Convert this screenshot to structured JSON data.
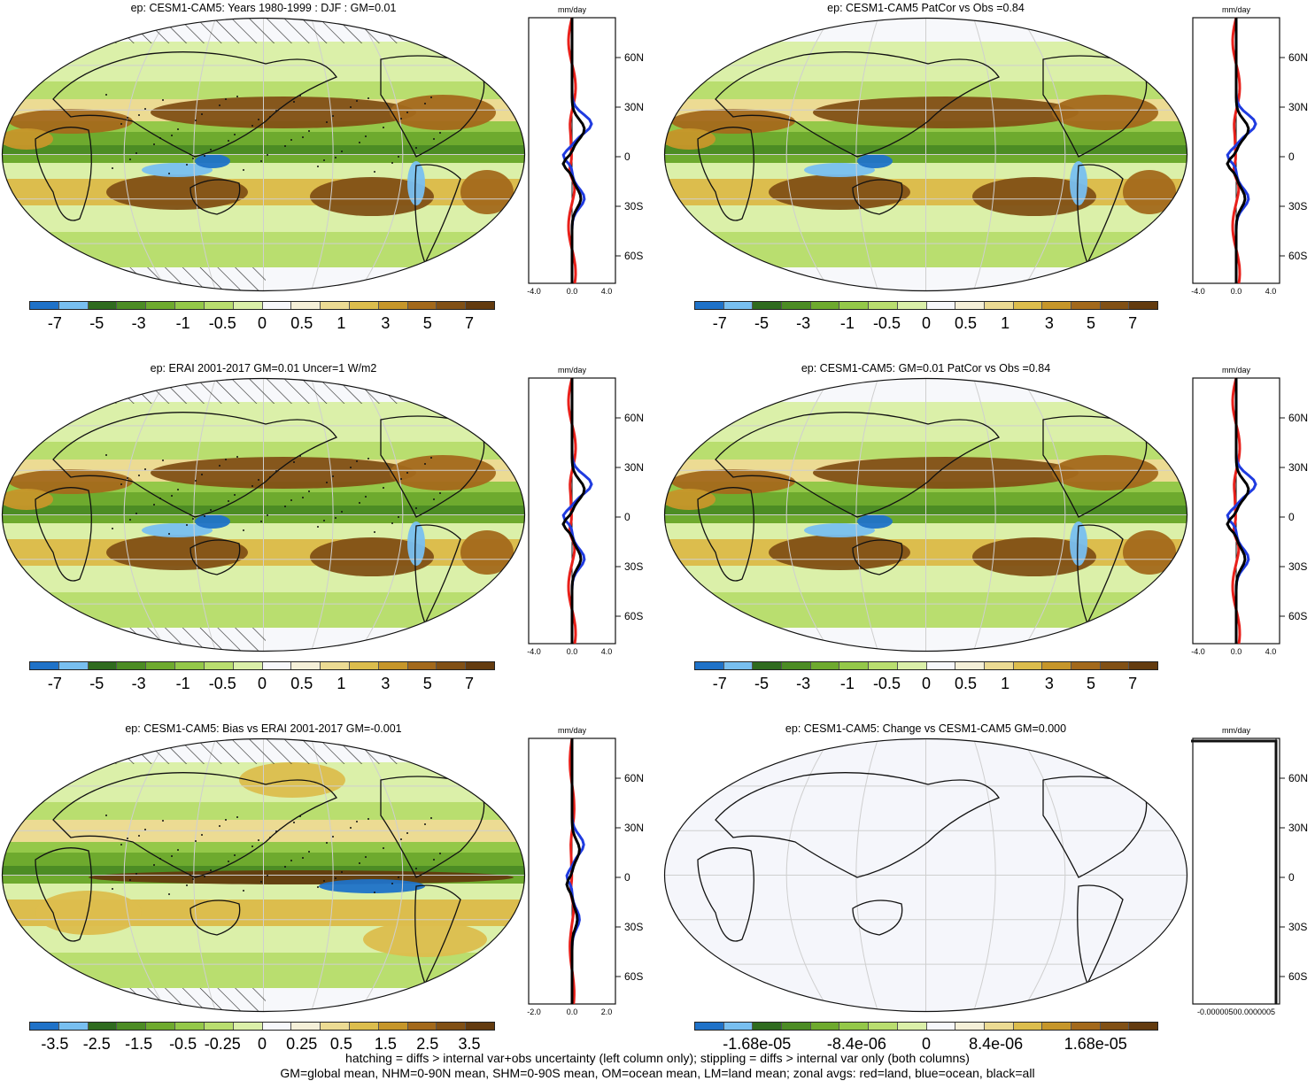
{
  "palette": [
    "#1f72c8",
    "#78bff0",
    "#2f6b1f",
    "#4c8c24",
    "#6eaa2e",
    "#94c849",
    "#b9de6f",
    "#dbf0a9",
    "#f7f8fb",
    "#f5f0d8",
    "#ecdb93",
    "#dcbd4d",
    "#c6962a",
    "#a3691b",
    "#815015",
    "#633b0f"
  ],
  "latitude_labels": [
    "60N",
    "30N",
    "0",
    "30S",
    "60S"
  ],
  "zonal_unit": "mm/day",
  "panels": [
    {
      "id": "p1",
      "title": "ep: CESM1-CAM5: Years 1980-1999 : DJF : GM=0.01",
      "colorbar_labels": [
        "-7",
        "-5",
        "-3",
        "-1",
        "-0.5",
        "0",
        "0.5",
        "1",
        "3",
        "5",
        "7"
      ],
      "zonal_ticks": [
        "-4.0",
        "0.0",
        "4.0"
      ],
      "map_type": "field",
      "hatch": true,
      "stipple": true
    },
    {
      "id": "p2",
      "title": "ep: CESM1-CAM5 PatCor vs Obs =0.84",
      "colorbar_labels": [
        "-7",
        "-5",
        "-3",
        "-1",
        "-0.5",
        "0",
        "0.5",
        "1",
        "3",
        "5",
        "7"
      ],
      "zonal_ticks": [
        "-4.0",
        "0.0",
        "4.0"
      ],
      "map_type": "field",
      "hatch": false,
      "stipple": false
    },
    {
      "id": "p3",
      "title": "ep: ERAI 2001-2017 GM=0.01 Uncer=1 W/m2",
      "colorbar_labels": [
        "-7",
        "-5",
        "-3",
        "-1",
        "-0.5",
        "0",
        "0.5",
        "1",
        "3",
        "5",
        "7"
      ],
      "zonal_ticks": [
        "-4.0",
        "0.0",
        "4.0"
      ],
      "map_type": "field",
      "hatch": true,
      "stipple": true
    },
    {
      "id": "p4",
      "title": "ep: CESM1-CAM5: GM=0.01 PatCor vs Obs =0.84",
      "colorbar_labels": [
        "-7",
        "-5",
        "-3",
        "-1",
        "-0.5",
        "0",
        "0.5",
        "1",
        "3",
        "5",
        "7"
      ],
      "zonal_ticks": [
        "-4.0",
        "0.0",
        "4.0"
      ],
      "map_type": "field",
      "hatch": false,
      "stipple": false
    },
    {
      "id": "p5",
      "title": "ep: CESM1-CAM5: Bias vs ERAI 2001-2017 GM=-0.001",
      "colorbar_labels": [
        "-3.5",
        "-2.5",
        "-1.5",
        "-0.5",
        "-0.25",
        "0",
        "0.25",
        "0.5",
        "1.5",
        "2.5",
        "3.5"
      ],
      "zonal_ticks": [
        "-2.0",
        "0.0",
        "2.0"
      ],
      "map_type": "bias",
      "hatch": true,
      "stipple": true
    },
    {
      "id": "p6",
      "title": "ep: CESM1-CAM5: Change vs CESM1-CAM5 GM=0.000",
      "colorbar_labels": [
        "-1.68e-05",
        "-8.4e-06",
        "0",
        "8.4e-06",
        "1.68e-05"
      ],
      "zonal_ticks": [
        "-0.000005",
        "0.000005"
      ],
      "zonal_tick_text": "-0.00000500.0000005",
      "map_type": "empty",
      "hatch": false,
      "stipple": false
    }
  ],
  "footer": {
    "line1": "hatching = diffs > internal var+obs uncertainty (left column only); stippling = diffs > internal var only (both columns)",
    "line2": "GM=global mean, NHM=0-90N mean, SHM=0-90S mean, OM=ocean mean, LM=land mean; zonal avgs: red=land, blue=ocean, black=all"
  }
}
